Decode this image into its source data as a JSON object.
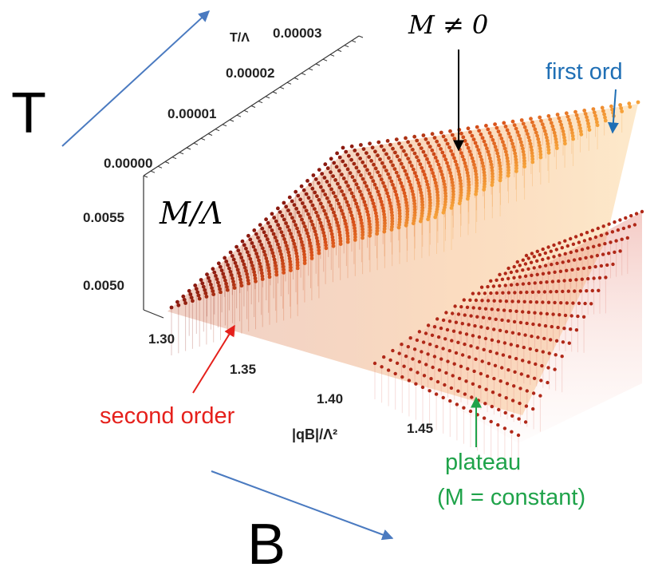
{
  "chart_data": {
    "type": "scatter",
    "plot_style": "3d-point-surface",
    "axes": {
      "x": {
        "label": "|qB|/Λ²",
        "ticks": [
          "1.30",
          "1.35",
          "1.40",
          "1.45"
        ],
        "range": [
          1.29,
          1.48
        ]
      },
      "y": {
        "label": "T/Λ",
        "ticks": [
          "0.00000",
          "0.00001",
          "0.00002",
          "0.00003"
        ],
        "range": [
          0,
          3.5e-05
        ]
      },
      "z": {
        "label": "M/Λ",
        "ticks": [
          "0.0050",
          "0.0055"
        ]
      }
    },
    "annotations": {
      "nonzero": "M ≠ 0",
      "first_order": "first ord",
      "second_order": "second order",
      "plateau": "plateau",
      "plateau_note": "(M = constant)"
    },
    "overlay_labels": {
      "temperature": "T",
      "field": "B"
    },
    "colors": {
      "ridge_dark": "#8b1a10",
      "ridge_mid": "#d9521a",
      "ridge_light": "#f6a23a",
      "plateau_rows": "#b02818",
      "first_order": "#1f6fb5",
      "second_order": "#e5201b",
      "plateau": "#1fa34a",
      "overlay_arrows": "#4a7ac0"
    },
    "grid": false,
    "legend": "none"
  }
}
